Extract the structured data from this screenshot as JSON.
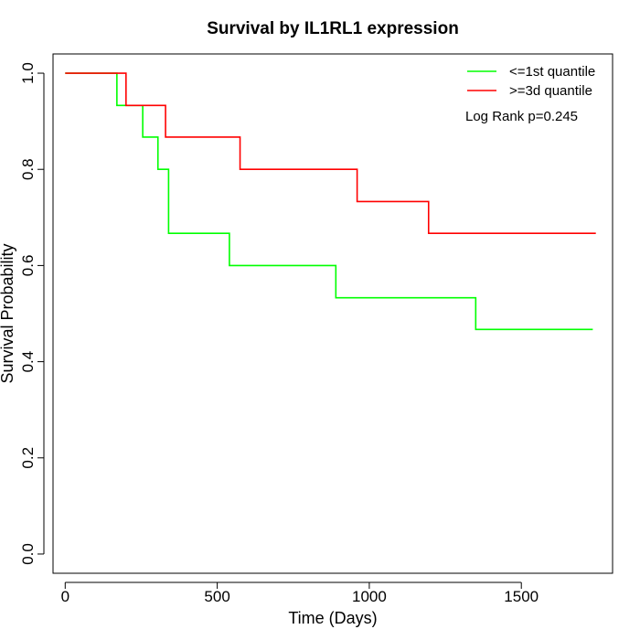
{
  "chart_data": {
    "type": "line",
    "step": true,
    "title": "Survival by IL1RL1 expression",
    "xlabel": "Time (Days)",
    "ylabel": "Survival Probability",
    "xlim": [
      -40,
      1800
    ],
    "ylim": [
      -0.04,
      1.04
    ],
    "xticks": [
      0,
      500,
      1000,
      1500
    ],
    "xtick_labels": [
      "0",
      "500",
      "1000",
      "1500"
    ],
    "yticks": [
      0.0,
      0.2,
      0.4,
      0.6,
      0.8,
      1.0
    ],
    "ytick_labels": [
      "0.0",
      "0.2",
      "0.4",
      "0.6",
      "0.8",
      "1.0"
    ],
    "grid": false,
    "legend_position": "top-right",
    "annotation": "Log Rank p=0.245",
    "series": [
      {
        "name": "<=1st quantile",
        "color": "#00ff00",
        "x": [
          0,
          170,
          255,
          305,
          340,
          540,
          890,
          1350,
          1735
        ],
        "y": [
          1.0,
          0.933,
          0.867,
          0.8,
          0.667,
          0.6,
          0.533,
          0.467,
          0.467
        ]
      },
      {
        "name": ">=3d quantile",
        "color": "#ff0000",
        "x": [
          0,
          200,
          330,
          575,
          960,
          1195,
          1745
        ],
        "y": [
          1.0,
          0.933,
          0.867,
          0.8,
          0.733,
          0.667,
          0.667
        ]
      }
    ]
  }
}
